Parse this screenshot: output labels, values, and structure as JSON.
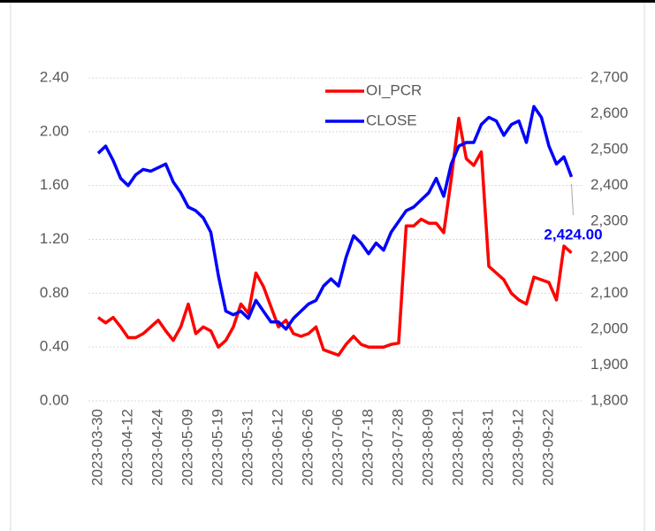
{
  "chart_data": {
    "type": "line",
    "categories": [
      "2023-03-30",
      null,
      null,
      null,
      "2023-04-12",
      null,
      null,
      null,
      "2023-04-24",
      null,
      null,
      null,
      "2023-05-09",
      null,
      null,
      null,
      "2023-05-19",
      null,
      null,
      null,
      "2023-05-31",
      null,
      null,
      null,
      "2023-06-12",
      null,
      null,
      null,
      "2023-06-26",
      null,
      null,
      null,
      "2023-07-06",
      null,
      null,
      null,
      "2023-07-18",
      null,
      null,
      null,
      "2023-07-28",
      null,
      null,
      null,
      "2023-08-09",
      null,
      null,
      null,
      "2023-08-21",
      null,
      null,
      null,
      "2023-08-31",
      null,
      null,
      null,
      "2023-09-12",
      null,
      null,
      null,
      "2023-09-22",
      null,
      null,
      null
    ],
    "series": [
      {
        "name": "OI_PCR",
        "color": "#ff0000",
        "values": [
          0.62,
          0.58,
          0.62,
          0.55,
          0.47,
          0.47,
          0.5,
          0.55,
          0.6,
          0.52,
          0.45,
          0.55,
          0.72,
          0.5,
          0.55,
          0.52,
          0.4,
          0.45,
          0.55,
          0.72,
          0.65,
          0.95,
          0.85,
          0.7,
          0.55,
          0.6,
          0.5,
          0.48,
          0.5,
          0.55,
          0.38,
          0.36,
          0.34,
          0.42,
          0.48,
          0.42,
          0.4,
          0.4,
          0.4,
          0.42,
          0.43,
          1.3,
          1.3,
          1.35,
          1.32,
          1.32,
          1.25,
          1.65,
          2.1,
          1.8,
          1.75,
          1.85,
          1.0,
          0.95,
          0.9,
          0.8,
          0.75,
          0.72,
          0.92,
          0.9,
          0.88,
          0.75,
          1.15,
          1.1
        ]
      },
      {
        "name": "CLOSE",
        "color": "#0000ff",
        "axis": "y2",
        "values": [
          2490,
          2510,
          2470,
          2420,
          2400,
          2430,
          2445,
          2440,
          2450,
          2460,
          2410,
          2380,
          2340,
          2330,
          2310,
          2270,
          2150,
          2050,
          2040,
          2050,
          2030,
          2080,
          2050,
          2020,
          2020,
          2000,
          2030,
          2050,
          2070,
          2080,
          2120,
          2140,
          2120,
          2200,
          2260,
          2240,
          2210,
          2240,
          2220,
          2270,
          2300,
          2330,
          2340,
          2360,
          2380,
          2420,
          2370,
          2460,
          2510,
          2520,
          2520,
          2570,
          2590,
          2580,
          2540,
          2570,
          2580,
          2520,
          2620,
          2590,
          2510,
          2460,
          2480,
          2424
        ],
        "value_labels": [
          null,
          null,
          null,
          null,
          null,
          null,
          null,
          null,
          null,
          null,
          null,
          null,
          null,
          null,
          null,
          null,
          null,
          null,
          null,
          null,
          null,
          null,
          null,
          null,
          null,
          null,
          null,
          null,
          null,
          null,
          null,
          null,
          null,
          null,
          null,
          null,
          null,
          null,
          null,
          null,
          null,
          null,
          null,
          null,
          null,
          null,
          null,
          null,
          null,
          null,
          null,
          null,
          null,
          null,
          null,
          null,
          null,
          null,
          null,
          null,
          null,
          null,
          null,
          "2,424.00"
        ]
      }
    ],
    "ylim": [
      0,
      2.4
    ],
    "yticks": [
      {
        "value": 0,
        "label": "0.00"
      },
      {
        "value": 0.4,
        "label": "0.40"
      },
      {
        "value": 0.8,
        "label": "0.80"
      },
      {
        "value": 1.2,
        "label": "1.20"
      },
      {
        "value": 1.6,
        "label": "1.60"
      },
      {
        "value": 2.0,
        "label": "2.00"
      },
      {
        "value": 2.4,
        "label": "2.40"
      }
    ],
    "y2lim": [
      1800,
      2700
    ],
    "y2ticks": [
      {
        "value": 1800,
        "label": "1,800"
      },
      {
        "value": 1900,
        "label": "1,900"
      },
      {
        "value": 2000,
        "label": "2,000"
      },
      {
        "value": 2100,
        "label": "2,100"
      },
      {
        "value": 2200,
        "label": "2,200"
      },
      {
        "value": 2300,
        "label": "2,300"
      },
      {
        "value": 2400,
        "label": "2,400"
      },
      {
        "value": 2500,
        "label": "2,500"
      },
      {
        "value": 2600,
        "label": "2,600"
      },
      {
        "value": 2700,
        "label": "2,700"
      }
    ],
    "grid": true
  }
}
